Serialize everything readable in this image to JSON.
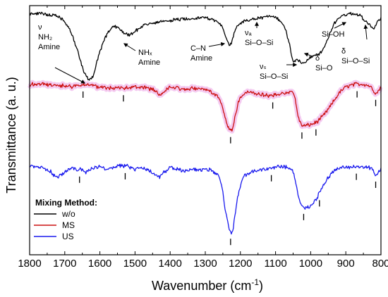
{
  "chart_data": {
    "type": "line",
    "title": "",
    "xlabel": "Wavenumber (cm",
    "xlabel_sup": "-1",
    "xlabel_tail": ")",
    "ylabel": "Transmittance (a. u.)",
    "xlim": [
      1800,
      800
    ],
    "x_reversed": true,
    "xticks": [
      1800,
      1700,
      1600,
      1500,
      1400,
      1300,
      1200,
      1100,
      1000,
      900,
      800
    ],
    "y_ticks_shown": false,
    "legend_title": "Mixing Method:",
    "legend_position": "bottom-left",
    "series": [
      {
        "name": "w/o",
        "color": "#000000",
        "noise": 0.01,
        "x": [
          1800,
          1760,
          1720,
          1700,
          1680,
          1660,
          1645,
          1632,
          1620,
          1605,
          1590,
          1575,
          1560,
          1545,
          1530,
          1515,
          1500,
          1470,
          1440,
          1400,
          1360,
          1320,
          1300,
          1280,
          1265,
          1250,
          1240,
          1232,
          1225,
          1218,
          1210,
          1195,
          1180,
          1160,
          1140,
          1120,
          1100,
          1080,
          1070,
          1060,
          1055,
          1050,
          1045,
          1040,
          1035,
          1025,
          1015,
          1005,
          995,
          985,
          975,
          965,
          955,
          945,
          935,
          920,
          905,
          890,
          875,
          860,
          845,
          830,
          820,
          812,
          800
        ],
        "y": [
          0.93,
          0.93,
          0.91,
          0.87,
          0.78,
          0.62,
          0.49,
          0.43,
          0.45,
          0.6,
          0.72,
          0.8,
          0.84,
          0.82,
          0.78,
          0.77,
          0.8,
          0.85,
          0.86,
          0.88,
          0.89,
          0.9,
          0.9,
          0.89,
          0.87,
          0.82,
          0.74,
          0.7,
          0.71,
          0.78,
          0.83,
          0.87,
          0.88,
          0.89,
          0.9,
          0.91,
          0.9,
          0.86,
          0.8,
          0.7,
          0.62,
          0.58,
          0.57,
          0.58,
          0.58,
          0.56,
          0.57,
          0.59,
          0.61,
          0.62,
          0.63,
          0.66,
          0.71,
          0.78,
          0.85,
          0.9,
          0.92,
          0.93,
          0.93,
          0.92,
          0.88,
          0.84,
          0.81,
          0.86,
          0.9
        ]
      },
      {
        "name": "MS",
        "color": "#cc1111",
        "highlight": "#f2c2ee",
        "noise": 0.012,
        "x": [
          1800,
          1760,
          1720,
          1700,
          1680,
          1660,
          1645,
          1630,
          1600,
          1560,
          1520,
          1480,
          1450,
          1430,
          1415,
          1400,
          1380,
          1360,
          1330,
          1300,
          1280,
          1265,
          1255,
          1248,
          1240,
          1234,
          1228,
          1224,
          1220,
          1214,
          1208,
          1200,
          1190,
          1175,
          1160,
          1140,
          1120,
          1100,
          1085,
          1070,
          1060,
          1050,
          1045,
          1040,
          1035,
          1030,
          1025,
          1020,
          1010,
          995,
          980,
          965,
          950,
          935,
          920,
          905,
          890,
          870,
          850,
          835,
          825,
          818,
          812,
          805,
          800
        ],
        "y": [
          0.4,
          0.4,
          0.39,
          0.39,
          0.38,
          0.39,
          0.4,
          0.39,
          0.38,
          0.37,
          0.37,
          0.38,
          0.36,
          0.32,
          0.35,
          0.38,
          0.37,
          0.36,
          0.37,
          0.36,
          0.34,
          0.31,
          0.26,
          0.2,
          0.12,
          0.07,
          0.055,
          0.06,
          0.1,
          0.17,
          0.24,
          0.3,
          0.33,
          0.34,
          0.33,
          0.32,
          0.31,
          0.32,
          0.33,
          0.33,
          0.34,
          0.34,
          0.3,
          0.22,
          0.15,
          0.11,
          0.09,
          0.085,
          0.09,
          0.1,
          0.12,
          0.16,
          0.21,
          0.27,
          0.33,
          0.37,
          0.39,
          0.4,
          0.4,
          0.39,
          0.37,
          0.34,
          0.33,
          0.36,
          0.38
        ]
      },
      {
        "name": "US",
        "color": "#1a1aee",
        "noise": 0.012,
        "x": [
          1800,
          1780,
          1760,
          1740,
          1725,
          1715,
          1700,
          1680,
          1660,
          1640,
          1620,
          1600,
          1580,
          1560,
          1540,
          1520,
          1500,
          1480,
          1460,
          1440,
          1430,
          1420,
          1400,
          1380,
          1360,
          1330,
          1300,
          1280,
          1265,
          1255,
          1248,
          1242,
          1236,
          1230,
          1226,
          1222,
          1216,
          1210,
          1200,
          1190,
          1170,
          1150,
          1130,
          1110,
          1090,
          1075,
          1065,
          1055,
          1048,
          1040,
          1034,
          1028,
          1022,
          1015,
          1005,
          995,
          985,
          975,
          965,
          955,
          940,
          925,
          910,
          890,
          870,
          850,
          835,
          825,
          818,
          812,
          805,
          800
        ],
        "y": [
          -0.22,
          -0.22,
          -0.23,
          -0.26,
          -0.3,
          -0.29,
          -0.26,
          -0.23,
          -0.24,
          -0.26,
          -0.23,
          -0.22,
          -0.24,
          -0.22,
          -0.21,
          -0.22,
          -0.24,
          -0.23,
          -0.25,
          -0.29,
          -0.3,
          -0.27,
          -0.23,
          -0.24,
          -0.25,
          -0.24,
          -0.24,
          -0.25,
          -0.28,
          -0.34,
          -0.45,
          -0.56,
          -0.64,
          -0.7,
          -0.72,
          -0.7,
          -0.6,
          -0.48,
          -0.36,
          -0.29,
          -0.26,
          -0.25,
          -0.24,
          -0.23,
          -0.22,
          -0.22,
          -0.23,
          -0.23,
          -0.28,
          -0.38,
          -0.45,
          -0.5,
          -0.52,
          -0.53,
          -0.52,
          -0.5,
          -0.47,
          -0.42,
          -0.37,
          -0.32,
          -0.27,
          -0.24,
          -0.23,
          -0.22,
          -0.22,
          -0.22,
          -0.23,
          -0.24,
          -0.27,
          -0.29,
          -0.25,
          -0.23
        ]
      }
    ],
    "markers": [
      {
        "series": "MS",
        "x": 1648
      },
      {
        "series": "MS",
        "x": 1533
      },
      {
        "series": "MS",
        "x": 1228
      },
      {
        "series": "MS",
        "x": 1108
      },
      {
        "series": "MS",
        "x": 1025
      },
      {
        "series": "MS",
        "x": 985
      },
      {
        "series": "MS",
        "x": 868
      },
      {
        "series": "MS",
        "x": 815
      },
      {
        "series": "US",
        "x": 1658
      },
      {
        "series": "US",
        "x": 1528
      },
      {
        "series": "US",
        "x": 1228
      },
      {
        "series": "US",
        "x": 1112
      },
      {
        "series": "US",
        "x": 1020
      },
      {
        "series": "US",
        "x": 975
      },
      {
        "series": "US",
        "x": 870
      },
      {
        "series": "US",
        "x": 815
      }
    ],
    "annotations": [
      {
        "id": "nu-nh2",
        "lines": [
          "ν",
          "NH₂",
          "Amine"
        ]
      },
      {
        "id": "nhx",
        "lines": [
          "NHₓ",
          "Amine"
        ]
      },
      {
        "id": "cn",
        "lines": [
          "C–N",
          "Amine"
        ]
      },
      {
        "id": "nu-as",
        "lines": [
          "νₐ",
          "Si–O–Si"
        ]
      },
      {
        "id": "nu-s",
        "lines": [
          "νₛ",
          "Si–O–Si"
        ]
      },
      {
        "id": "si-oh",
        "lines": [
          "Si–OH"
        ]
      },
      {
        "id": "delta-si-o",
        "lines": [
          "δ",
          "Si–O"
        ]
      },
      {
        "id": "delta-si-o-si",
        "lines": [
          "δ",
          "Si–O–Si"
        ]
      }
    ]
  }
}
